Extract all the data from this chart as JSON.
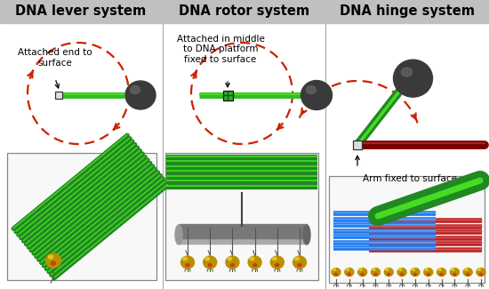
{
  "title1": "DNA lever system",
  "title2": "DNA rotor system",
  "title3": "DNA hinge system",
  "label1": "Attached end to\nsurface",
  "label2": "Attached in middle\nto DNA platform\nfixed to surface",
  "label3": "Arm fixed to surface",
  "bg_color": "#ffffff",
  "header_bg": "#c0c0c0",
  "title_fontsize": 10.5,
  "label_fontsize": 7.5,
  "red_color": "#cc2200",
  "green_dark": "#228822",
  "green_light": "#44dd22",
  "green_mid": "#33bb22",
  "dark_sphere": "#3a3a3a",
  "sphere_highlight": "#666666",
  "gold_dark": "#b89000",
  "gold_light": "#eecc22",
  "blue_dna": "#2277ee",
  "blue_dna_light": "#55aaff",
  "red_dna": "#bb2222",
  "red_dna_light": "#dd5555",
  "dark_red_arm": "#7a0000",
  "gray_platform": "#787878",
  "gray_platform_light": "#aaaaaa",
  "hinge_box": "#334488"
}
